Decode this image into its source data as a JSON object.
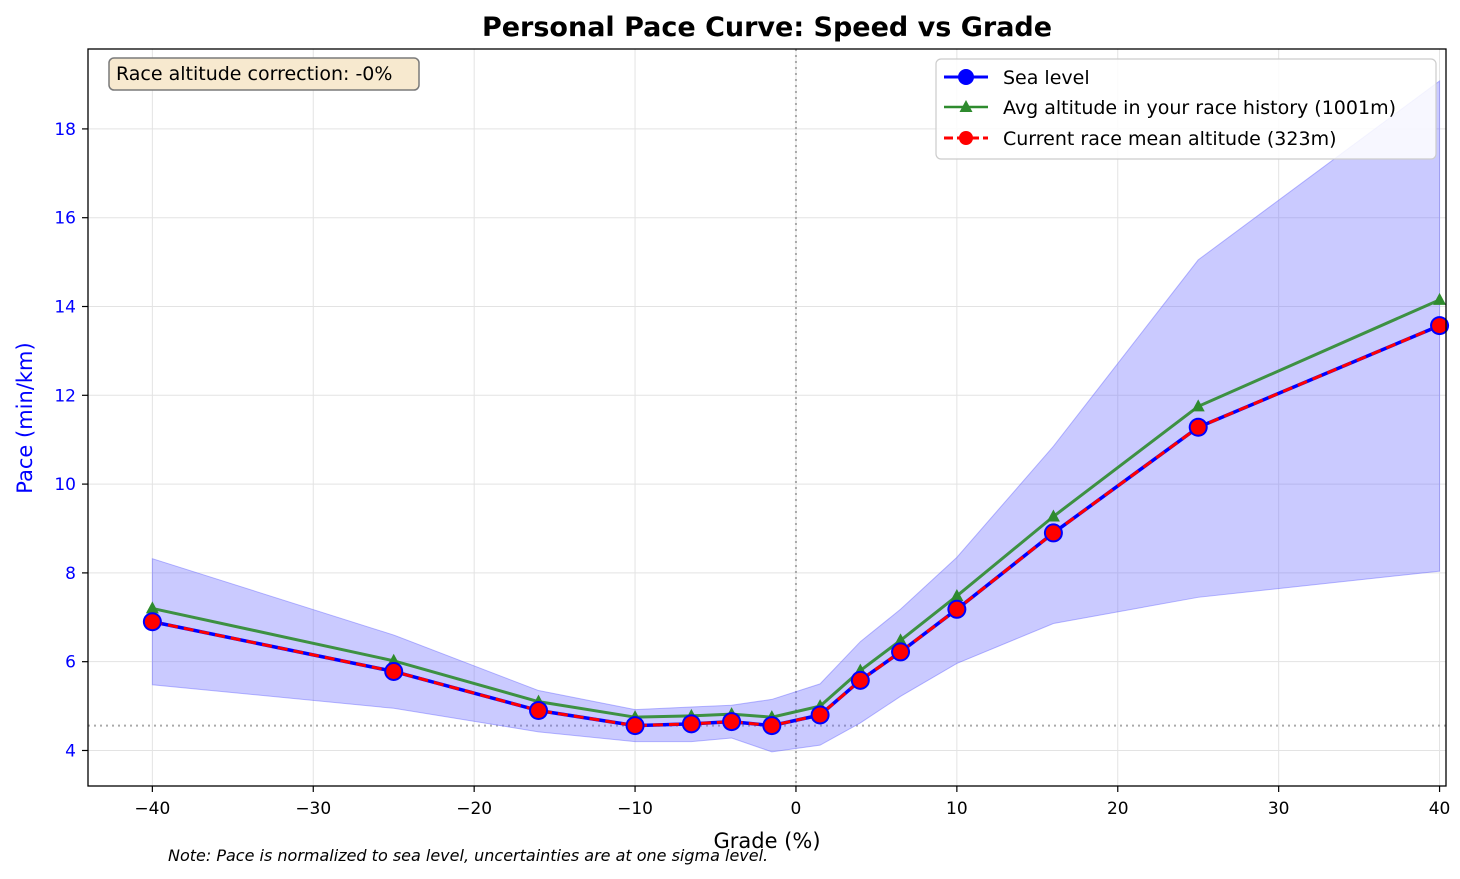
{
  "chart_data": {
    "type": "line",
    "title": "Personal Pace Curve: Speed vs Grade",
    "xlabel": "Grade (%)",
    "ylabel": "Pace (min/km)",
    "xlim": [
      -44,
      40.4
    ],
    "ylim": [
      3.2,
      19.8
    ],
    "xticks": [
      -40,
      -30,
      -20,
      -10,
      0,
      10,
      20,
      30,
      40
    ],
    "xtick_labels": [
      "−40",
      "−30",
      "−20",
      "−10",
      "0",
      "10",
      "20",
      "30",
      "40"
    ],
    "yticks": [
      4,
      6,
      8,
      10,
      12,
      14,
      16,
      18
    ],
    "ytick_labels": [
      "4",
      "6",
      "8",
      "10",
      "12",
      "14",
      "16",
      "18"
    ],
    "grid": true,
    "legend_position": "top-right",
    "x": [
      -40,
      -25,
      -16,
      -10,
      -6.5,
      -4,
      -1.5,
      1.5,
      4,
      6.5,
      10,
      16,
      25,
      40
    ],
    "series": [
      {
        "name": "Sea level",
        "values": [
          6.9,
          5.78,
          4.9,
          4.56,
          4.6,
          4.65,
          4.56,
          4.8,
          5.58,
          6.22,
          7.18,
          8.9,
          11.28,
          13.57
        ],
        "color": "#0000ff",
        "marker": "circle",
        "line_style": "solid"
      },
      {
        "name": "Avg altitude in your race history (1001m)",
        "values": [
          7.2,
          6.02,
          5.1,
          4.75,
          4.78,
          4.82,
          4.75,
          5.0,
          5.8,
          6.48,
          7.48,
          9.27,
          11.75,
          14.15
        ],
        "color": "#2e8b2e",
        "marker": "triangle",
        "line_style": "solid"
      },
      {
        "name": "Current race mean altitude (323m)",
        "values": [
          6.9,
          5.78,
          4.9,
          4.56,
          4.6,
          4.65,
          4.56,
          4.8,
          5.58,
          6.22,
          7.18,
          8.9,
          11.28,
          13.57
        ],
        "color": "#ff0000",
        "marker": "circle",
        "line_style": "dashed"
      }
    ],
    "band": {
      "x": [
        -40,
        -25,
        -16,
        -10,
        -6.5,
        -4,
        -1.5,
        1.5,
        4,
        6.5,
        10,
        16,
        25,
        40
      ],
      "upper": [
        8.32,
        6.6,
        5.35,
        4.92,
        4.98,
        5.02,
        5.15,
        5.5,
        6.45,
        7.18,
        8.35,
        10.85,
        15.05,
        19.08
      ],
      "lower": [
        5.48,
        4.95,
        4.42,
        4.2,
        4.2,
        4.28,
        3.97,
        4.12,
        4.62,
        5.22,
        5.96,
        6.86,
        7.45,
        8.04
      ],
      "color": "#6666ff"
    },
    "reference_lines": {
      "vertical_x": 0,
      "horizontal_y": 4.56
    },
    "annotation": "Race altitude correction: -0%",
    "note": "Note: Pace is normalized to sea level, uncertainties are at one sigma level."
  }
}
